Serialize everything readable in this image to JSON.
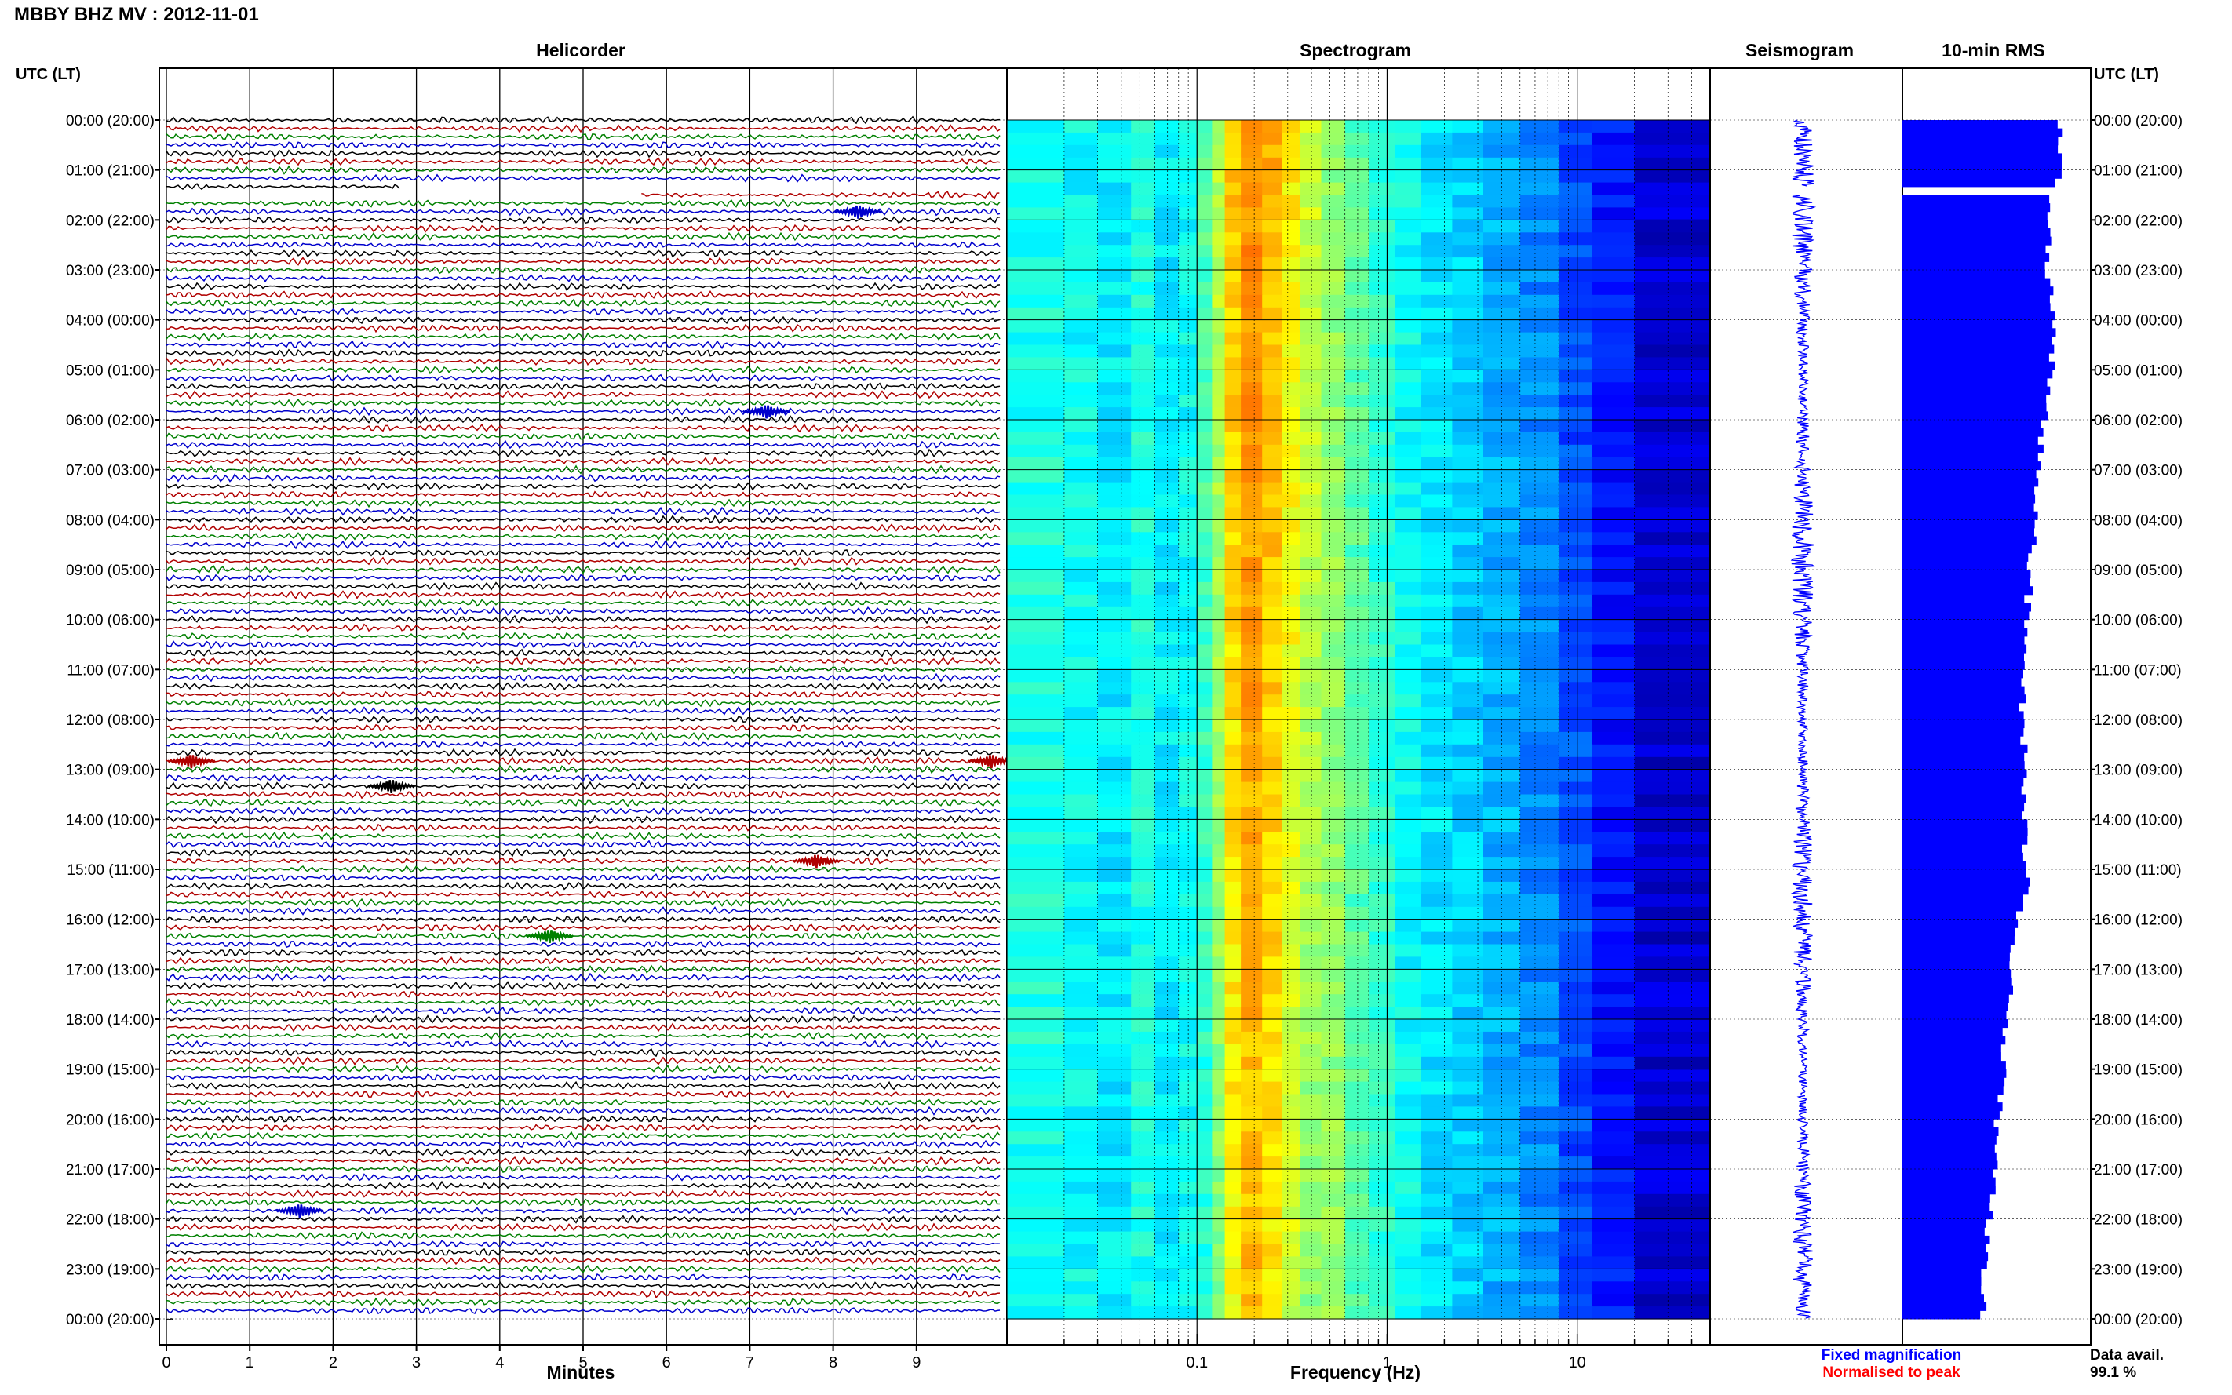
{
  "header": {
    "station_title": "MBBY BHZ MV : 2012-11-01"
  },
  "panel_titles": {
    "helicorder": "Helicorder",
    "spectrogram": "Spectrogram",
    "seismogram": "Seismogram",
    "rms": "10-min RMS"
  },
  "axis_labels": {
    "left_time": "UTC (LT)",
    "right_time": "UTC (LT)",
    "minutes": "Minutes",
    "frequency": "Frequency (Hz)"
  },
  "legend": {
    "fixed_magnification": "Fixed magnification",
    "normalised_to_peak": "Normalised to peak",
    "fixed_color": "#0000ff",
    "normalised_color": "#ff0000"
  },
  "data_availability": {
    "label": "Data avail.",
    "value": "99.1 %"
  },
  "colors": {
    "trace_cycle": [
      "#000000",
      "#b00000",
      "#008000",
      "#0000cc"
    ],
    "rms_bar": "#0000ff",
    "seismogram": "#0000ff",
    "grid": "#000000"
  },
  "chart_data": [
    {
      "type": "line",
      "panel": "helicorder",
      "title": "Helicorder",
      "xlabel": "Minutes",
      "xlim": [
        0,
        10
      ],
      "x_ticks": [
        "0",
        "1",
        "2",
        "3",
        "4",
        "5",
        "6",
        "7",
        "8",
        "9"
      ],
      "y_ticks_left": [
        "00:00 (20:00)",
        "01:00 (21:00)",
        "02:00 (22:00)",
        "03:00 (23:00)",
        "04:00 (00:00)",
        "05:00 (01:00)",
        "06:00 (02:00)",
        "07:00 (03:00)",
        "08:00 (04:00)",
        "09:00 (05:00)",
        "10:00 (06:00)",
        "11:00 (07:00)",
        "12:00 (08:00)",
        "13:00 (09:00)",
        "14:00 (10:00)",
        "15:00 (11:00)",
        "16:00 (12:00)",
        "17:00 (13:00)",
        "18:00 (14:00)",
        "19:00 (15:00)",
        "20:00 (16:00)",
        "21:00 (17:00)",
        "22:00 (18:00)",
        "23:00 (19:00)",
        "00:00 (20:00)"
      ],
      "rows_per_hour": 6,
      "rows": 144,
      "data_gap": {
        "start_hour": 1.33,
        "end_hour": 1.5
      },
      "events": [
        {
          "hour": 1.8,
          "minute": 8.3
        },
        {
          "hour": 12.8,
          "minute": 0.3
        },
        {
          "hour": 12.8,
          "minute": 9.9
        },
        {
          "hour": 13.3,
          "minute": 2.7
        },
        {
          "hour": 14.8,
          "minute": 7.8
        },
        {
          "hour": 16.3,
          "minute": 4.6
        },
        {
          "hour": 21.8,
          "minute": 1.6
        },
        {
          "hour": 5.8,
          "minute": 7.2
        }
      ]
    },
    {
      "type": "heatmap",
      "panel": "spectrogram",
      "title": "Spectrogram",
      "xlabel": "Frequency (Hz)",
      "x_scale": "log",
      "xlim": [
        0.01,
        50
      ],
      "x_tick_labels": [
        "0.1",
        "1",
        "10"
      ],
      "y_range_hours": [
        0,
        24
      ],
      "gap_hours": [
        1.33,
        1.5
      ],
      "colormap": "jet"
    },
    {
      "type": "line",
      "panel": "seismogram",
      "title": "Seismogram",
      "y_range_hours": [
        0,
        24
      ],
      "gap_hours": [
        1.33,
        1.5
      ]
    },
    {
      "type": "bar",
      "panel": "rms",
      "title": "10-min RMS",
      "orientation": "horizontal",
      "interval_minutes": 10,
      "y_range_hours": [
        0,
        24
      ],
      "values_hourly": [
        0.92,
        0.9,
        0.85,
        0.84,
        0.88,
        0.86,
        0.82,
        0.78,
        0.76,
        0.74,
        0.72,
        0.71,
        0.69,
        0.72,
        0.7,
        0.73,
        0.66,
        0.64,
        0.6,
        0.58,
        0.55,
        0.53,
        0.5,
        0.48,
        0.46
      ]
    }
  ]
}
